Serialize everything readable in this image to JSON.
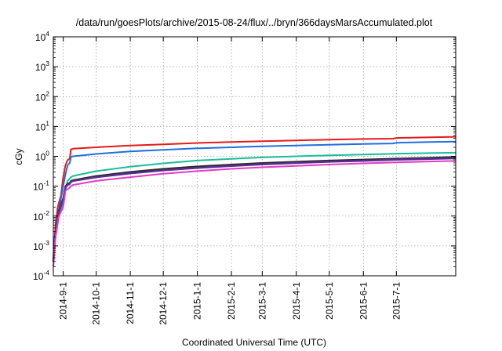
{
  "chart_data": {
    "type": "line",
    "title": "/data/run/goesPlots/archive/2015-08-24/flux/../bryn/366daysMarsAccumulated.plot",
    "xlabel": "Coordinated Universal Time (UTC)",
    "ylabel": "cGy",
    "yscale": "log",
    "ylim": [
      0.0001,
      10000
    ],
    "xlim": [
      "2014-08-23",
      "2015-08-24"
    ],
    "grid": true,
    "legend": "none",
    "x_ticks": [
      "2014-9-1",
      "2014-10-1",
      "2014-11-1",
      "2014-12-1",
      "2015-1-1",
      "2015-2-1",
      "2015-3-1",
      "2015-4-1",
      "2015-5-1",
      "2015-6-1",
      "2015-7-1"
    ],
    "y_ticks": [
      {
        "base": "10",
        "exp": "-4"
      },
      {
        "base": "10",
        "exp": "-3"
      },
      {
        "base": "10",
        "exp": "-2"
      },
      {
        "base": "10",
        "exp": "-1"
      },
      {
        "base": "10",
        "exp": "0"
      },
      {
        "base": "10",
        "exp": "1"
      },
      {
        "base": "10",
        "exp": "2"
      },
      {
        "base": "10",
        "exp": "3"
      },
      {
        "base": "10",
        "exp": "4"
      }
    ],
    "series": [
      {
        "color": "#e41a1c",
        "width": 2,
        "x": [
          "2014-08-23",
          "2014-08-25",
          "2014-08-27",
          "2014-08-30",
          "2014-09-01",
          "2014-09-03",
          "2014-09-05",
          "2014-09-07",
          "2014-09-08",
          "2014-09-10",
          "2014-10-01",
          "2014-11-01",
          "2014-12-01",
          "2015-01-01",
          "2015-02-01",
          "2015-03-01",
          "2015-04-01",
          "2015-05-01",
          "2015-06-01",
          "2015-06-28",
          "2015-07-01",
          "2015-08-01",
          "2015-08-24"
        ],
        "y": [
          0.0004,
          0.005,
          0.02,
          0.05,
          0.2,
          0.5,
          0.75,
          0.85,
          1.7,
          1.8,
          2.0,
          2.3,
          2.5,
          2.8,
          3.0,
          3.2,
          3.4,
          3.6,
          3.8,
          3.9,
          4.1,
          4.3,
          4.5
        ]
      },
      {
        "color": "#1f6fe0",
        "width": 2,
        "x": [
          "2014-08-23",
          "2014-08-25",
          "2014-08-27",
          "2014-08-30",
          "2014-09-01",
          "2014-09-03",
          "2014-09-05",
          "2014-09-07",
          "2014-09-08",
          "2014-09-10",
          "2014-10-01",
          "2014-11-01",
          "2014-12-01",
          "2015-01-01",
          "2015-02-01",
          "2015-03-01",
          "2015-04-01",
          "2015-05-01",
          "2015-06-01",
          "2015-06-28",
          "2015-07-01",
          "2015-08-01",
          "2015-08-24"
        ],
        "y": [
          0.0003,
          0.003,
          0.01,
          0.04,
          0.1,
          0.25,
          0.5,
          0.6,
          0.95,
          1.0,
          1.2,
          1.45,
          1.65,
          1.85,
          2.0,
          2.15,
          2.3,
          2.45,
          2.6,
          2.7,
          2.85,
          3.0,
          3.1
        ]
      },
      {
        "color": "#1abc9c",
        "width": 2,
        "x": [
          "2014-08-23",
          "2014-08-25",
          "2014-08-28",
          "2014-09-01",
          "2014-09-03",
          "2014-09-05",
          "2014-09-07",
          "2014-09-08",
          "2014-09-10",
          "2014-10-01",
          "2014-11-01",
          "2014-12-01",
          "2015-01-01",
          "2015-02-01",
          "2015-03-01",
          "2015-04-01",
          "2015-05-01",
          "2015-06-01",
          "2015-07-01",
          "2015-08-01",
          "2015-08-24"
        ],
        "y": [
          0.0003,
          0.002,
          0.01,
          0.03,
          0.08,
          0.15,
          0.18,
          0.2,
          0.22,
          0.32,
          0.45,
          0.58,
          0.72,
          0.82,
          0.92,
          1.0,
          1.08,
          1.15,
          1.22,
          1.28,
          1.32
        ]
      },
      {
        "color": "#2a2a2a",
        "width": 2,
        "x": [
          "2014-08-23",
          "2014-08-25",
          "2014-08-28",
          "2014-09-01",
          "2014-09-03",
          "2014-09-05",
          "2014-09-07",
          "2014-09-08",
          "2014-09-10",
          "2014-10-01",
          "2014-11-01",
          "2014-12-01",
          "2015-01-01",
          "2015-02-01",
          "2015-03-01",
          "2015-04-01",
          "2015-05-01",
          "2015-06-01",
          "2015-07-01",
          "2015-08-01",
          "2015-08-24"
        ],
        "y": [
          0.0003,
          0.003,
          0.015,
          0.04,
          0.1,
          0.12,
          0.13,
          0.15,
          0.16,
          0.22,
          0.3,
          0.38,
          0.46,
          0.53,
          0.6,
          0.66,
          0.72,
          0.78,
          0.84,
          0.9,
          0.95
        ]
      },
      {
        "color": "#5a2d91",
        "width": 2.5,
        "x": [
          "2014-08-23",
          "2014-08-25",
          "2014-08-28",
          "2014-09-01",
          "2014-09-03",
          "2014-09-05",
          "2014-09-07",
          "2014-09-08",
          "2014-09-10",
          "2014-10-01",
          "2014-11-01",
          "2014-12-01",
          "2015-01-01",
          "2015-02-01",
          "2015-03-01",
          "2015-04-01",
          "2015-05-01",
          "2015-06-01",
          "2015-07-01",
          "2015-08-01",
          "2015-08-24"
        ],
        "y": [
          0.0003,
          0.003,
          0.014,
          0.035,
          0.09,
          0.11,
          0.12,
          0.14,
          0.15,
          0.2,
          0.27,
          0.34,
          0.41,
          0.48,
          0.54,
          0.6,
          0.66,
          0.71,
          0.77,
          0.82,
          0.86
        ]
      },
      {
        "color": "#e03cc8",
        "width": 2,
        "x": [
          "2014-08-23",
          "2014-08-25",
          "2014-08-28",
          "2014-09-01",
          "2014-09-03",
          "2014-09-05",
          "2014-09-07",
          "2014-09-08",
          "2014-09-10",
          "2014-10-01",
          "2014-11-01",
          "2014-12-01",
          "2015-01-01",
          "2015-02-01",
          "2015-03-01",
          "2015-04-01",
          "2015-05-01",
          "2015-06-01",
          "2015-07-01",
          "2015-08-01",
          "2015-08-24"
        ],
        "y": [
          0.0002,
          0.002,
          0.01,
          0.02,
          0.07,
          0.08,
          0.09,
          0.1,
          0.11,
          0.15,
          0.2,
          0.26,
          0.32,
          0.38,
          0.43,
          0.48,
          0.53,
          0.58,
          0.63,
          0.67,
          0.7
        ]
      }
    ]
  }
}
